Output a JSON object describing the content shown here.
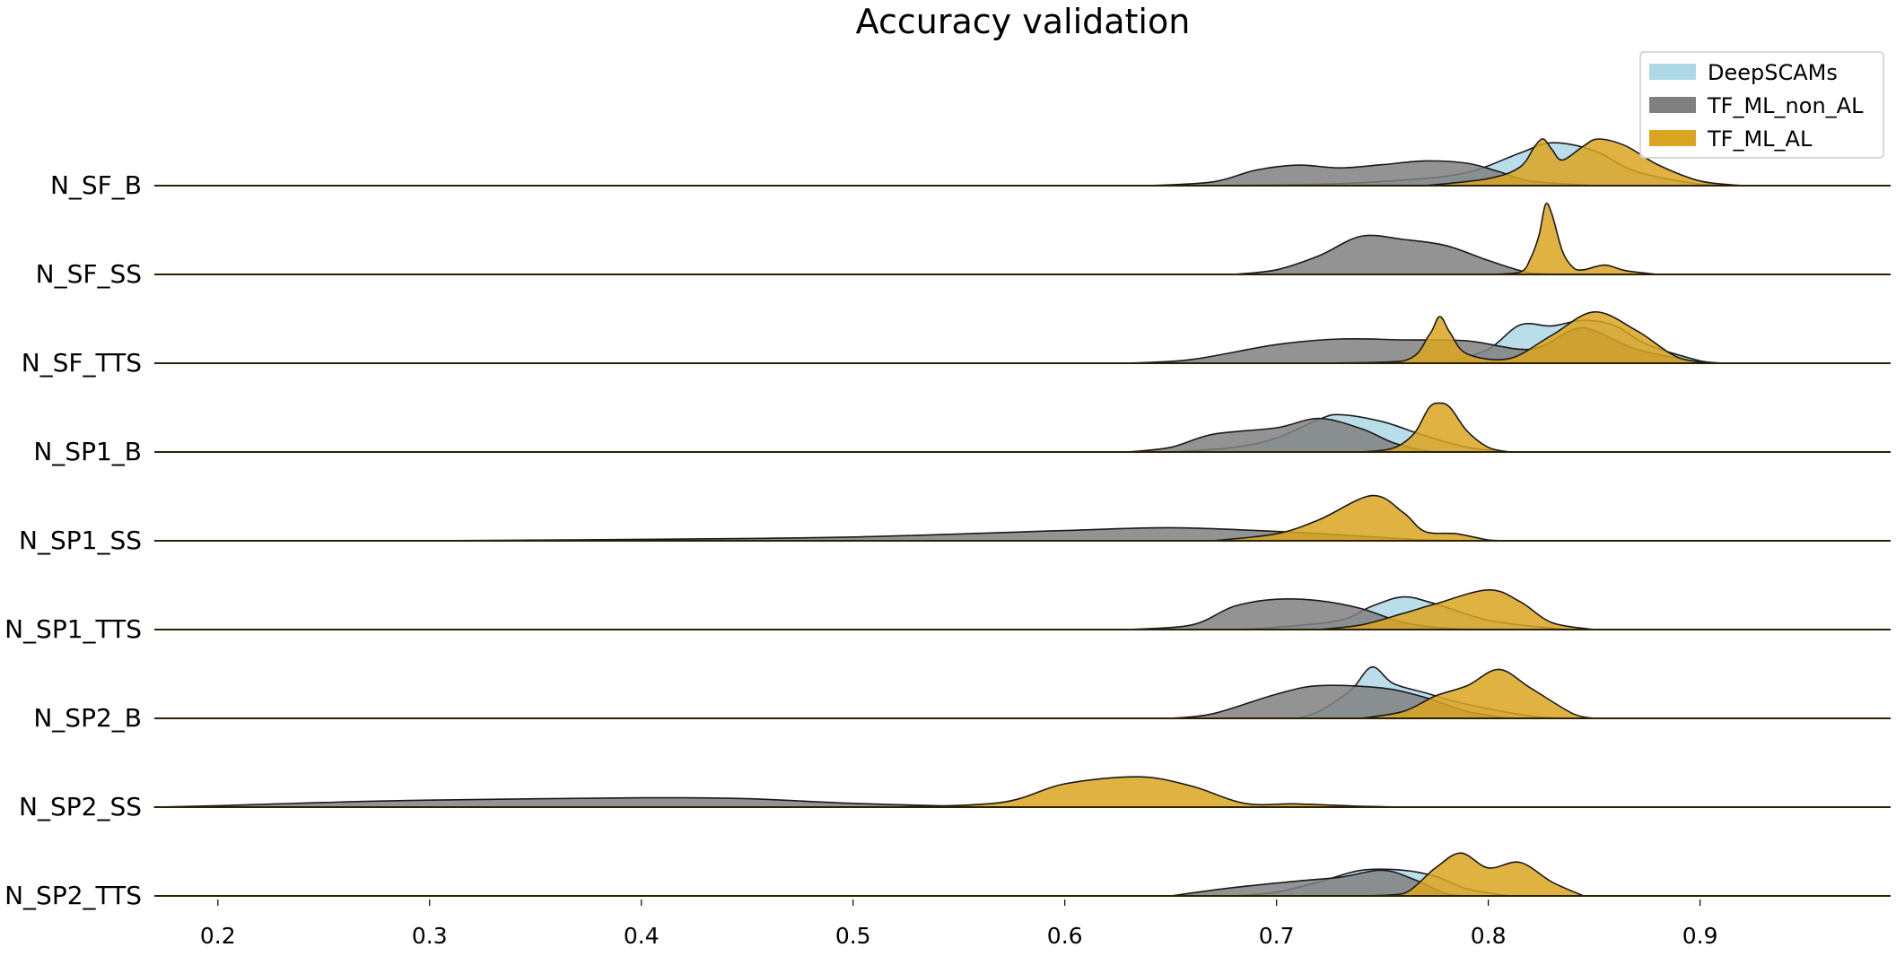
{
  "chart_data": {
    "type": "area",
    "subtype": "ridgeline-density",
    "title": "Accuracy validation",
    "xlabel": "",
    "ylabel": "",
    "xlim": [
      0.17,
      0.99
    ],
    "grid": false,
    "legend_position": "top-right",
    "x_ticks": [
      {
        "value": 0.2,
        "label": "0.2"
      },
      {
        "value": 0.3,
        "label": "0.3"
      },
      {
        "value": 0.4,
        "label": "0.4"
      },
      {
        "value": 0.5,
        "label": "0.5"
      },
      {
        "value": 0.6,
        "label": "0.6"
      },
      {
        "value": 0.7,
        "label": "0.7"
      },
      {
        "value": 0.8,
        "label": "0.8"
      },
      {
        "value": 0.9,
        "label": "0.9"
      }
    ],
    "series": [
      {
        "name": "DeepSCAMs",
        "color": "#add8e6"
      },
      {
        "name": "TF_ML_non_AL",
        "color": "#808080"
      },
      {
        "name": "TF_ML_AL",
        "color": "#daa520"
      }
    ],
    "ridges": [
      {
        "label": "N_SF_B",
        "curves": {
          "DeepSCAMs": [
            [
              0.66,
              0
            ],
            [
              0.72,
              0.03
            ],
            [
              0.76,
              0.12
            ],
            [
              0.79,
              0.28
            ],
            [
              0.815,
              0.7
            ],
            [
              0.83,
              0.92
            ],
            [
              0.85,
              0.75
            ],
            [
              0.87,
              0.3
            ],
            [
              0.9,
              0.03
            ],
            [
              0.92,
              0
            ]
          ],
          "TF_ML_non_AL": [
            [
              0.64,
              0
            ],
            [
              0.67,
              0.08
            ],
            [
              0.69,
              0.33
            ],
            [
              0.71,
              0.44
            ],
            [
              0.73,
              0.38
            ],
            [
              0.75,
              0.45
            ],
            [
              0.77,
              0.53
            ],
            [
              0.79,
              0.48
            ],
            [
              0.805,
              0.3
            ],
            [
              0.82,
              0.1
            ],
            [
              0.85,
              0
            ]
          ],
          "TF_ML_AL": [
            [
              0.77,
              0
            ],
            [
              0.8,
              0.15
            ],
            [
              0.815,
              0.4
            ],
            [
              0.822,
              0.85
            ],
            [
              0.826,
              1.0
            ],
            [
              0.83,
              0.78
            ],
            [
              0.835,
              0.55
            ],
            [
              0.845,
              0.85
            ],
            [
              0.852,
              1.0
            ],
            [
              0.865,
              0.85
            ],
            [
              0.88,
              0.45
            ],
            [
              0.9,
              0.1
            ],
            [
              0.92,
              0
            ]
          ]
        }
      },
      {
        "label": "N_SF_SS",
        "curves": {
          "DeepSCAMs": [],
          "TF_ML_non_AL": [
            [
              0.68,
              0
            ],
            [
              0.7,
              0.1
            ],
            [
              0.72,
              0.4
            ],
            [
              0.74,
              0.82
            ],
            [
              0.76,
              0.75
            ],
            [
              0.78,
              0.62
            ],
            [
              0.8,
              0.3
            ],
            [
              0.82,
              0.03
            ],
            [
              0.84,
              0
            ]
          ],
          "TF_ML_AL": [
            [
              0.8,
              0
            ],
            [
              0.815,
              0.05
            ],
            [
              0.82,
              0.35
            ],
            [
              0.824,
              0.85
            ],
            [
              0.827,
              1.5
            ],
            [
              0.83,
              1.3
            ],
            [
              0.835,
              0.5
            ],
            [
              0.84,
              0.15
            ],
            [
              0.845,
              0.1
            ],
            [
              0.855,
              0.2
            ],
            [
              0.865,
              0.08
            ],
            [
              0.88,
              0
            ]
          ]
        }
      },
      {
        "label": "N_SF_TTS",
        "curves": {
          "DeepSCAMs": [
            [
              0.78,
              0
            ],
            [
              0.8,
              0.3
            ],
            [
              0.815,
              0.82
            ],
            [
              0.83,
              0.8
            ],
            [
              0.845,
              0.92
            ],
            [
              0.86,
              0.8
            ],
            [
              0.875,
              0.4
            ],
            [
              0.9,
              0.05
            ],
            [
              0.91,
              0
            ]
          ],
          "TF_ML_non_AL": [
            [
              0.63,
              0
            ],
            [
              0.66,
              0.08
            ],
            [
              0.7,
              0.4
            ],
            [
              0.73,
              0.52
            ],
            [
              0.76,
              0.5
            ],
            [
              0.79,
              0.48
            ],
            [
              0.82,
              0.3
            ],
            [
              0.84,
              0.72
            ],
            [
              0.85,
              0.7
            ],
            [
              0.87,
              0.3
            ],
            [
              0.9,
              0.02
            ],
            [
              0.91,
              0
            ]
          ],
          "TF_ML_AL": [
            [
              0.72,
              0
            ],
            [
              0.76,
              0.05
            ],
            [
              0.772,
              0.6
            ],
            [
              0.777,
              1.0
            ],
            [
              0.782,
              0.65
            ],
            [
              0.79,
              0.2
            ],
            [
              0.81,
              0.1
            ],
            [
              0.83,
              0.6
            ],
            [
              0.85,
              1.1
            ],
            [
              0.87,
              0.7
            ],
            [
              0.89,
              0.12
            ],
            [
              0.91,
              0
            ]
          ]
        }
      },
      {
        "label": "N_SP1_B",
        "curves": {
          "DeepSCAMs": [
            [
              0.65,
              0
            ],
            [
              0.68,
              0.1
            ],
            [
              0.7,
              0.3
            ],
            [
              0.72,
              0.7
            ],
            [
              0.73,
              0.8
            ],
            [
              0.75,
              0.65
            ],
            [
              0.77,
              0.35
            ],
            [
              0.79,
              0.1
            ],
            [
              0.81,
              0
            ]
          ],
          "TF_ML_non_AL": [
            [
              0.63,
              0
            ],
            [
              0.65,
              0.1
            ],
            [
              0.67,
              0.38
            ],
            [
              0.7,
              0.52
            ],
            [
              0.72,
              0.72
            ],
            [
              0.74,
              0.5
            ],
            [
              0.755,
              0.2
            ],
            [
              0.77,
              0.03
            ],
            [
              0.78,
              0
            ]
          ],
          "TF_ML_AL": [
            [
              0.74,
              0
            ],
            [
              0.755,
              0.08
            ],
            [
              0.765,
              0.4
            ],
            [
              0.772,
              0.95
            ],
            [
              0.777,
              1.05
            ],
            [
              0.782,
              0.95
            ],
            [
              0.79,
              0.45
            ],
            [
              0.8,
              0.1
            ],
            [
              0.81,
              0
            ]
          ]
        }
      },
      {
        "label": "N_SP1_SS",
        "curves": {
          "DeepSCAMs": [],
          "TF_ML_non_AL": [
            [
              0.3,
              0
            ],
            [
              0.4,
              0.03
            ],
            [
              0.5,
              0.08
            ],
            [
              0.6,
              0.22
            ],
            [
              0.65,
              0.28
            ],
            [
              0.7,
              0.2
            ],
            [
              0.74,
              0.1
            ],
            [
              0.77,
              0.02
            ],
            [
              0.8,
              0
            ]
          ],
          "TF_ML_AL": [
            [
              0.67,
              0
            ],
            [
              0.7,
              0.15
            ],
            [
              0.72,
              0.45
            ],
            [
              0.745,
              0.97
            ],
            [
              0.76,
              0.6
            ],
            [
              0.77,
              0.2
            ],
            [
              0.785,
              0.15
            ],
            [
              0.8,
              0.02
            ],
            [
              0.81,
              0
            ]
          ]
        }
      },
      {
        "label": "N_SP1_TTS",
        "curves": {
          "DeepSCAMs": [
            [
              0.68,
              0
            ],
            [
              0.7,
              0.05
            ],
            [
              0.73,
              0.2
            ],
            [
              0.745,
              0.5
            ],
            [
              0.76,
              0.7
            ],
            [
              0.775,
              0.55
            ],
            [
              0.8,
              0.2
            ],
            [
              0.83,
              0.03
            ],
            [
              0.84,
              0
            ]
          ],
          "TF_ML_non_AL": [
            [
              0.63,
              0
            ],
            [
              0.66,
              0.1
            ],
            [
              0.68,
              0.5
            ],
            [
              0.7,
              0.65
            ],
            [
              0.72,
              0.62
            ],
            [
              0.74,
              0.45
            ],
            [
              0.76,
              0.15
            ],
            [
              0.78,
              0.03
            ],
            [
              0.8,
              0
            ]
          ],
          "TF_ML_AL": [
            [
              0.72,
              0
            ],
            [
              0.74,
              0.1
            ],
            [
              0.76,
              0.35
            ],
            [
              0.775,
              0.55
            ],
            [
              0.8,
              0.85
            ],
            [
              0.815,
              0.6
            ],
            [
              0.83,
              0.15
            ],
            [
              0.85,
              0
            ]
          ]
        }
      },
      {
        "label": "N_SP2_B",
        "curves": {
          "DeepSCAMs": [
            [
              0.71,
              0
            ],
            [
              0.72,
              0.15
            ],
            [
              0.735,
              0.6
            ],
            [
              0.745,
              1.1
            ],
            [
              0.755,
              0.75
            ],
            [
              0.77,
              0.55
            ],
            [
              0.79,
              0.3
            ],
            [
              0.82,
              0.05
            ],
            [
              0.84,
              0
            ]
          ],
          "TF_ML_non_AL": [
            [
              0.65,
              0
            ],
            [
              0.67,
              0.1
            ],
            [
              0.7,
              0.52
            ],
            [
              0.72,
              0.7
            ],
            [
              0.75,
              0.65
            ],
            [
              0.77,
              0.45
            ],
            [
              0.79,
              0.15
            ],
            [
              0.81,
              0
            ]
          ],
          "TF_ML_AL": [
            [
              0.74,
              0
            ],
            [
              0.76,
              0.15
            ],
            [
              0.775,
              0.48
            ],
            [
              0.79,
              0.7
            ],
            [
              0.805,
              1.05
            ],
            [
              0.82,
              0.65
            ],
            [
              0.84,
              0.1
            ],
            [
              0.85,
              0
            ]
          ]
        }
      },
      {
        "label": "N_SP2_SS",
        "curves": {
          "DeepSCAMs": [],
          "TF_ML_non_AL": [
            [
              0.17,
              0
            ],
            [
              0.2,
              0.03
            ],
            [
              0.25,
              0.1
            ],
            [
              0.3,
              0.15
            ],
            [
              0.4,
              0.2
            ],
            [
              0.45,
              0.18
            ],
            [
              0.5,
              0.08
            ],
            [
              0.55,
              0.02
            ],
            [
              0.58,
              0
            ]
          ],
          "TF_ML_AL": [
            [
              0.52,
              0
            ],
            [
              0.57,
              0.1
            ],
            [
              0.6,
              0.5
            ],
            [
              0.635,
              0.65
            ],
            [
              0.66,
              0.45
            ],
            [
              0.685,
              0.08
            ],
            [
              0.71,
              0.07
            ],
            [
              0.74,
              0.02
            ],
            [
              0.76,
              0
            ]
          ]
        }
      },
      {
        "label": "N_SP2_TTS",
        "curves": {
          "DeepSCAMs": [
            [
              0.68,
              0
            ],
            [
              0.7,
              0.08
            ],
            [
              0.72,
              0.3
            ],
            [
              0.74,
              0.55
            ],
            [
              0.76,
              0.55
            ],
            [
              0.775,
              0.42
            ],
            [
              0.79,
              0.15
            ],
            [
              0.81,
              0
            ]
          ],
          "TF_ML_non_AL": [
            [
              0.65,
              0
            ],
            [
              0.68,
              0.18
            ],
            [
              0.71,
              0.32
            ],
            [
              0.73,
              0.4
            ],
            [
              0.75,
              0.55
            ],
            [
              0.765,
              0.35
            ],
            [
              0.78,
              0.05
            ],
            [
              0.79,
              0
            ]
          ],
          "TF_ML_AL": [
            [
              0.74,
              0
            ],
            [
              0.76,
              0.05
            ],
            [
              0.775,
              0.6
            ],
            [
              0.787,
              0.92
            ],
            [
              0.8,
              0.6
            ],
            [
              0.815,
              0.72
            ],
            [
              0.83,
              0.3
            ],
            [
              0.845,
              0
            ]
          ]
        }
      }
    ]
  }
}
